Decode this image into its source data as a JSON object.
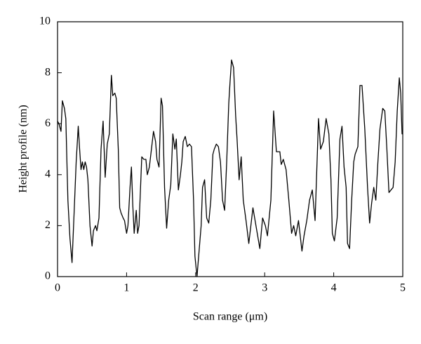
{
  "chart_data": {
    "type": "line",
    "xlabel": "Scan range (μm)",
    "ylabel": "Height profile (nm)",
    "xlim": [
      0,
      5
    ],
    "ylim": [
      0,
      10
    ],
    "xticks": [
      0,
      1,
      2,
      3,
      4,
      5
    ],
    "yticks": [
      0,
      2,
      4,
      6,
      8,
      10
    ],
    "x": [
      0,
      0.02,
      0.05,
      0.07,
      0.1,
      0.12,
      0.15,
      0.18,
      0.21,
      0.24,
      0.27,
      0.3,
      0.32,
      0.34,
      0.36,
      0.38,
      0.4,
      0.42,
      0.44,
      0.47,
      0.5,
      0.52,
      0.55,
      0.57,
      0.6,
      0.63,
      0.66,
      0.69,
      0.72,
      0.75,
      0.78,
      0.8,
      0.83,
      0.85,
      0.88,
      0.9,
      0.92,
      0.95,
      0.97,
      1.0,
      1.02,
      1.05,
      1.07,
      1.09,
      1.11,
      1.14,
      1.16,
      1.18,
      1.22,
      1.25,
      1.28,
      1.3,
      1.33,
      1.36,
      1.39,
      1.42,
      1.44,
      1.47,
      1.5,
      1.52,
      1.55,
      1.58,
      1.61,
      1.64,
      1.67,
      1.7,
      1.72,
      1.75,
      1.78,
      1.8,
      1.82,
      1.85,
      1.88,
      1.91,
      1.94,
      1.97,
      1.99,
      2.02,
      2.05,
      2.08,
      2.1,
      2.13,
      2.16,
      2.19,
      2.22,
      2.25,
      2.27,
      2.3,
      2.33,
      2.36,
      2.39,
      2.42,
      2.45,
      2.48,
      2.5,
      2.52,
      2.55,
      2.58,
      2.6,
      2.63,
      2.66,
      2.69,
      2.73,
      2.77,
      2.83,
      2.88,
      2.93,
      2.97,
      3.01,
      3.04,
      3.09,
      3.13,
      3.17,
      3.22,
      3.24,
      3.27,
      3.31,
      3.35,
      3.39,
      3.42,
      3.45,
      3.49,
      3.54,
      3.57,
      3.61,
      3.65,
      3.69,
      3.73,
      3.78,
      3.81,
      3.85,
      3.89,
      3.93,
      3.96,
      3.98,
      4.01,
      4.05,
      4.09,
      4.12,
      4.15,
      4.18,
      4.2,
      4.23,
      4.26,
      4.29,
      4.31,
      4.35,
      4.38,
      4.41,
      4.45,
      4.49,
      4.52,
      4.55,
      4.58,
      4.61,
      4.64,
      4.67,
      4.71,
      4.74,
      4.77,
      4.8,
      4.83,
      4.86,
      4.89,
      4.92,
      4.95,
      4.97,
      4.99,
      5.0
    ],
    "series": [
      {
        "color": "#000000",
        "values": [
          6.1,
          6.0,
          5.7,
          6.9,
          6.6,
          6.2,
          3.0,
          1.5,
          0.55,
          2.5,
          4.5,
          5.9,
          5.0,
          4.2,
          4.5,
          4.2,
          4.5,
          4.3,
          3.8,
          2.0,
          1.2,
          1.8,
          2.0,
          1.8,
          2.3,
          5.0,
          6.1,
          3.9,
          5.2,
          5.6,
          7.9,
          7.1,
          7.2,
          7.0,
          5.0,
          2.7,
          2.5,
          2.3,
          2.2,
          1.7,
          2.0,
          3.5,
          4.3,
          2.8,
          1.7,
          2.6,
          1.7,
          2.0,
          4.7,
          4.6,
          4.6,
          4.0,
          4.3,
          5.0,
          5.7,
          5.3,
          4.6,
          4.3,
          7.0,
          6.7,
          3.5,
          1.9,
          3.0,
          3.6,
          5.6,
          5.0,
          5.4,
          3.4,
          4.0,
          4.5,
          5.3,
          5.5,
          5.1,
          5.2,
          5.1,
          3.0,
          0.8,
          0.0,
          1.0,
          2.0,
          3.5,
          3.8,
          2.3,
          2.1,
          3.0,
          4.8,
          5.0,
          5.2,
          5.1,
          4.5,
          3.0,
          2.6,
          4.5,
          6.8,
          7.7,
          8.5,
          8.2,
          6.3,
          5.4,
          3.8,
          4.7,
          3.0,
          2.2,
          1.3,
          2.7,
          1.9,
          1.1,
          2.3,
          2.0,
          1.6,
          3.0,
          6.5,
          4.9,
          4.9,
          4.4,
          4.6,
          4.2,
          3.0,
          1.7,
          2.0,
          1.6,
          2.2,
          1.0,
          1.6,
          2.2,
          3.0,
          3.4,
          2.2,
          6.2,
          5.0,
          5.3,
          6.2,
          5.6,
          3.8,
          1.7,
          1.4,
          2.3,
          5.4,
          5.9,
          4.3,
          3.5,
          1.3,
          1.1,
          3.0,
          4.5,
          4.8,
          5.1,
          7.5,
          7.5,
          5.8,
          3.5,
          2.1,
          2.9,
          3.5,
          3.0,
          4.5,
          5.8,
          6.6,
          6.5,
          5.0,
          3.3,
          3.4,
          3.5,
          4.5,
          6.5,
          7.8,
          7.2,
          5.6,
          5.6
        ]
      }
    ]
  }
}
